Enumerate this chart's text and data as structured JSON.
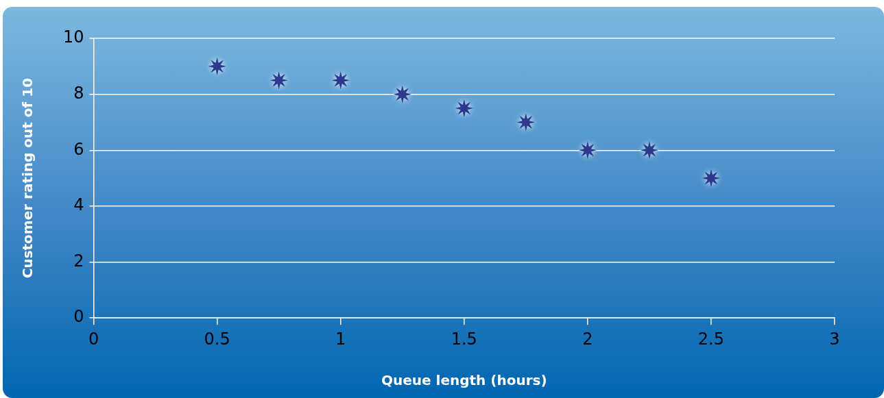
{
  "chart_data": {
    "type": "scatter",
    "xlabel": "Queue length (hours)",
    "ylabel": "Customer rating out of 10",
    "x": [
      0.5,
      0.75,
      1,
      1.25,
      1.5,
      1.75,
      2,
      2.25,
      2.5
    ],
    "series": [
      {
        "color": "#2b3a8c",
        "values": [
          9,
          8.5,
          8.5,
          8,
          7.5,
          7,
          6,
          6,
          5
        ]
      }
    ],
    "xlim": [
      0,
      3
    ],
    "xticks": [
      0,
      0.5,
      1,
      1.5,
      2,
      2.5,
      3
    ],
    "ylim": [
      0,
      10
    ],
    "yticks": [
      0,
      2,
      4,
      6,
      8,
      10
    ],
    "grid": "y",
    "legend": false,
    "marker": "star"
  }
}
